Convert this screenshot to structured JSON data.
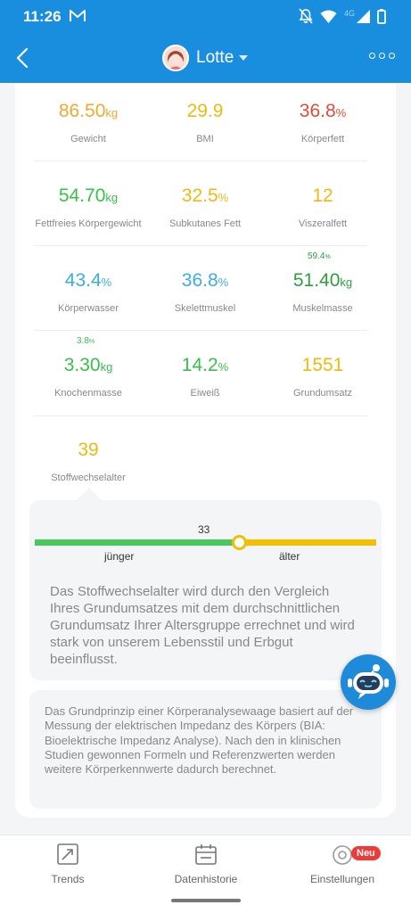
{
  "status_bar": {
    "time": "11:26",
    "network": "4G"
  },
  "header": {
    "profile_name": "Lotte"
  },
  "metrics": [
    {
      "id": "gewicht",
      "value": "86.50",
      "unit": "kg",
      "label": "Gewicht",
      "color": "#f3a830"
    },
    {
      "id": "bmi",
      "value": "29.9",
      "unit": "",
      "label": "BMI",
      "color": "#efb912"
    },
    {
      "id": "koerperfett",
      "value": "36.8",
      "unit": "%",
      "label": "Körperfett",
      "color": "#e14b3a"
    },
    {
      "id": "fettfrei",
      "value": "54.70",
      "unit": "kg",
      "label": "Fettfreies Körpergewicht",
      "color": "#39bf4a"
    },
    {
      "id": "subkutan",
      "value": "32.5",
      "unit": "%",
      "label": "Subkutanes Fett",
      "color": "#efb912"
    },
    {
      "id": "viszeral",
      "value": "12",
      "unit": "",
      "label": "Viszeralfett",
      "color": "#efb912"
    },
    {
      "id": "wasser",
      "value": "43.4",
      "unit": "%",
      "label": "Körperwasser",
      "color": "#3aaee0"
    },
    {
      "id": "skelett",
      "value": "36.8",
      "unit": "%",
      "label": "Skelettmuskel",
      "color": "#3aaee0"
    },
    {
      "id": "muskel",
      "value": "51.40",
      "unit": "kg",
      "label": "Muskelmasse",
      "color": "#2e9f3e",
      "sub_value": "59.4",
      "sub_unit": "%"
    },
    {
      "id": "knochen",
      "value": "3.30",
      "unit": "kg",
      "label": "Knochenmasse",
      "color": "#39bf4a",
      "sub_value": "3.8",
      "sub_unit": "%"
    },
    {
      "id": "eiweiss",
      "value": "14.2",
      "unit": "%",
      "label": "Eiweiß",
      "color": "#39bf4a"
    },
    {
      "id": "grundumsatz",
      "value": "1551",
      "unit": "",
      "label": "Grundumsatz",
      "color": "#efb912"
    },
    {
      "id": "stoffwechselalter",
      "value": "39",
      "unit": "",
      "label": "Stoffwechselalter",
      "color": "#efb912"
    }
  ],
  "metabolic_age": {
    "marker_value": "33",
    "left_label": "jünger",
    "right_label": "älter",
    "bar_colors": [
      "#49c85e",
      "#f2c000"
    ],
    "description": "Das Stoffwechselalter wird durch den Vergleich Ihres Grundumsatzes mit dem durchschnittlichen Grundumsatz Ihrer Altersgruppe errechnet und wird stark von unserem Lebensstil und Erbgut beeinflusst."
  },
  "info_text": "Das Grundprinzip einer Körperanalysewaage basiert auf der Messung der elektrischen Impedanz des Körpers (BIA: Bioelektrische Impedanz Analyse). Nach den in klinischen Studien gewonnen Formeln und Referenzwerten werden weitere Körperkennwerte dadurch berechnet.",
  "bottom_nav": {
    "items": [
      {
        "label": "Trends",
        "icon": "trend-icon"
      },
      {
        "label": "Datenhistorie",
        "icon": "calendar-icon"
      },
      {
        "label": "Einstellungen",
        "icon": "settings-icon",
        "badge": "Neu"
      }
    ]
  },
  "colors": {
    "header": "#1a8ede",
    "chatbot": "#1f8ad9",
    "badge": "#ef3a3a"
  }
}
